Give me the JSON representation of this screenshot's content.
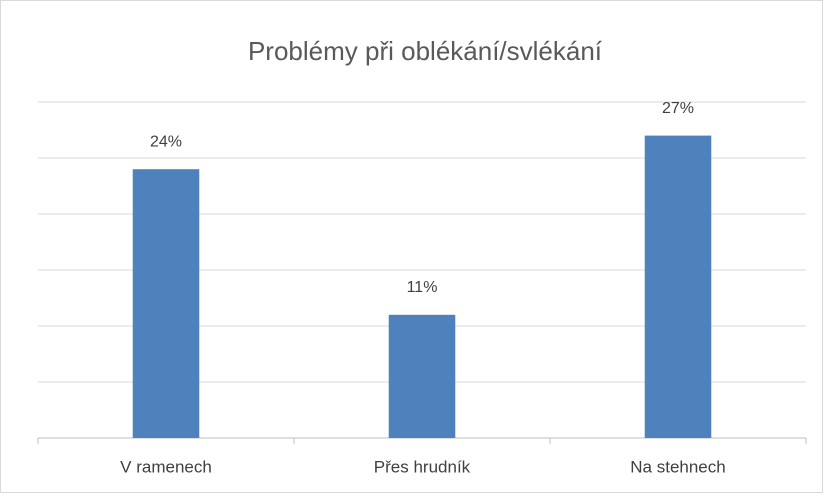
{
  "chart_data": {
    "type": "bar",
    "title": "Problémy při oblékání/svlékání",
    "categories": [
      "V ramenech",
      "Přes hrudník",
      "Na stehnech"
    ],
    "values": [
      24,
      11,
      27
    ],
    "value_labels": [
      "24%",
      "11%",
      "27%"
    ],
    "color": "#4f81bd",
    "ylim": [
      0,
      30
    ],
    "yticks": [
      0,
      5,
      10,
      15,
      20,
      25,
      30
    ],
    "grid": true
  }
}
